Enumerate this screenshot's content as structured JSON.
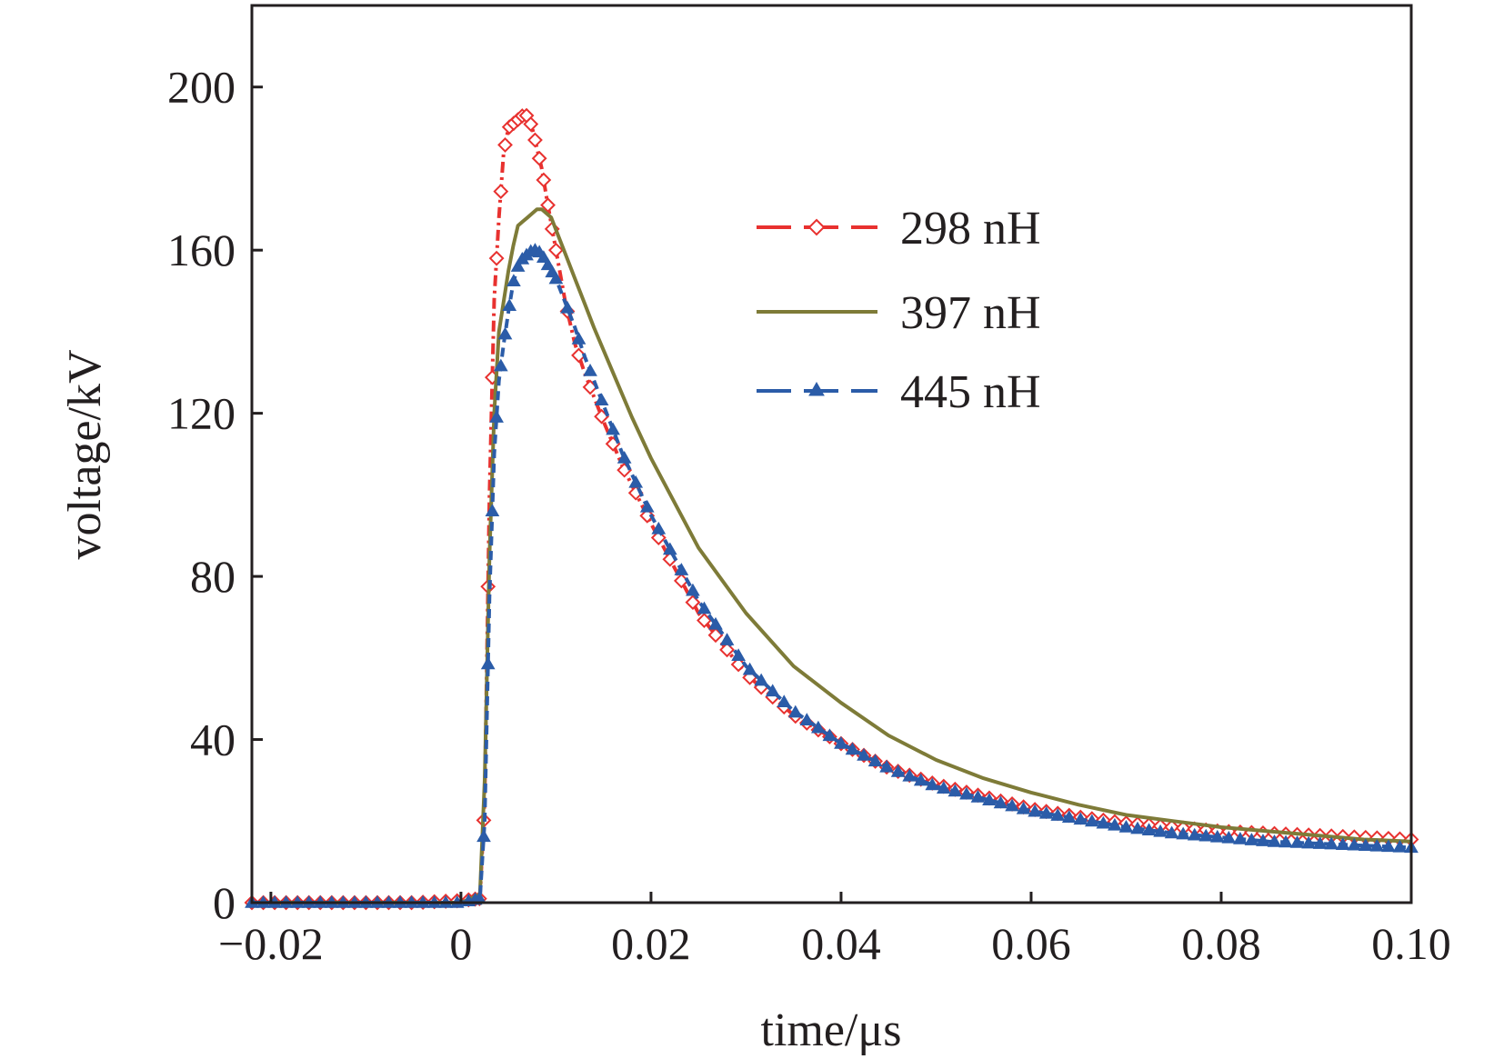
{
  "chart_data": {
    "type": "line",
    "xlabel": "time/μs",
    "ylabel": "voltage/kV",
    "xlim": [
      -0.022,
      0.1
    ],
    "ylim": [
      0,
      220
    ],
    "x_ticks": [
      -0.02,
      0,
      0.02,
      0.04,
      0.06,
      0.08,
      0.1
    ],
    "x_tick_labels": [
      "−0.02",
      "0",
      "0.02",
      "0.04",
      "0.06",
      "0.08",
      "0.10"
    ],
    "y_ticks": [
      0,
      40,
      80,
      120,
      160,
      200
    ],
    "y_tick_labels": [
      "0",
      "40",
      "80",
      "120",
      "160",
      "200"
    ],
    "grid": false,
    "legend_position": "upper-right",
    "series": [
      {
        "name": "298 nH",
        "color": "#e8312f",
        "line_style": "dash-dot",
        "marker": "open-diamond",
        "x": [
          -0.022,
          -0.015,
          -0.01,
          -0.005,
          0.0,
          0.002,
          0.0025,
          0.003,
          0.0035,
          0.004,
          0.0045,
          0.005,
          0.0055,
          0.006,
          0.0065,
          0.007,
          0.0075,
          0.008,
          0.0085,
          0.009,
          0.01,
          0.011,
          0.012,
          0.013,
          0.015,
          0.017,
          0.02,
          0.025,
          0.03,
          0.035,
          0.04,
          0.045,
          0.05,
          0.055,
          0.06,
          0.065,
          0.07,
          0.075,
          0.08,
          0.085,
          0.09,
          0.095,
          0.1
        ],
        "y": [
          0,
          0,
          0,
          0,
          0.5,
          1,
          25,
          100,
          148,
          168,
          184,
          190,
          191,
          192,
          193,
          193,
          190,
          185,
          180,
          173,
          160,
          147,
          137,
          130,
          118,
          107,
          93,
          71,
          56,
          46,
          39,
          33,
          29,
          26,
          23,
          21,
          19.5,
          18.5,
          17.5,
          17,
          16.5,
          16,
          15.5
        ]
      },
      {
        "name": "397 nH",
        "color": "#7e7b38",
        "line_style": "solid",
        "marker": "none",
        "x": [
          -0.022,
          -0.01,
          0.0,
          0.002,
          0.0025,
          0.003,
          0.0035,
          0.004,
          0.005,
          0.0055,
          0.006,
          0.0065,
          0.007,
          0.0075,
          0.008,
          0.0085,
          0.009,
          0.0095,
          0.01,
          0.011,
          0.012,
          0.013,
          0.014,
          0.016,
          0.018,
          0.02,
          0.025,
          0.03,
          0.035,
          0.04,
          0.045,
          0.05,
          0.055,
          0.06,
          0.065,
          0.07,
          0.075,
          0.08,
          0.085,
          0.09,
          0.095,
          0.1
        ],
        "y": [
          0,
          0,
          0,
          2,
          30,
          85,
          120,
          140,
          155,
          161,
          166,
          167,
          168,
          169,
          170,
          170,
          169,
          168,
          165,
          159,
          153,
          147,
          141,
          130,
          119,
          109,
          87,
          71,
          58,
          49,
          41,
          35,
          30.5,
          27,
          24,
          21.5,
          20,
          18.5,
          17.5,
          16.5,
          15.5,
          15
        ]
      },
      {
        "name": "445 nH",
        "color": "#2b5ca8",
        "line_style": "dashed",
        "marker": "filled-triangle",
        "x": [
          -0.022,
          -0.015,
          -0.01,
          -0.005,
          0.0,
          0.002,
          0.0025,
          0.003,
          0.0035,
          0.004,
          0.0045,
          0.005,
          0.0055,
          0.006,
          0.0065,
          0.007,
          0.0075,
          0.008,
          0.0085,
          0.009,
          0.01,
          0.011,
          0.012,
          0.013,
          0.015,
          0.017,
          0.02,
          0.025,
          0.03,
          0.035,
          0.04,
          0.045,
          0.05,
          0.055,
          0.06,
          0.065,
          0.07,
          0.075,
          0.08,
          0.085,
          0.09,
          0.095,
          0.1
        ],
        "y": [
          0,
          0,
          0,
          0,
          0,
          1,
          20,
          75,
          110,
          128,
          137,
          145,
          152,
          156,
          158,
          159,
          160,
          160,
          159,
          157,
          153,
          147,
          141,
          134,
          122,
          110,
          95,
          74,
          58,
          47,
          39,
          33,
          28.5,
          25.5,
          22.5,
          20.5,
          18.5,
          17,
          16,
          15,
          14.5,
          14,
          13.5
        ]
      }
    ]
  }
}
